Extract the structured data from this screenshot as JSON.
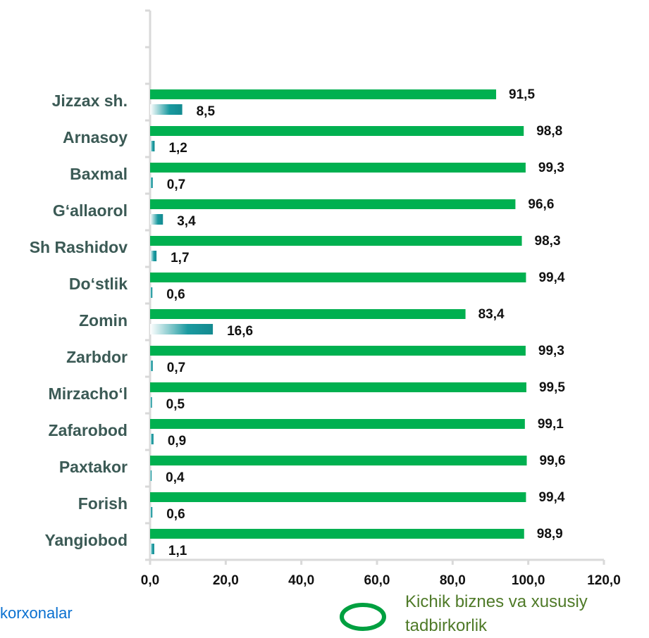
{
  "chart_data": {
    "type": "bar",
    "orientation": "horizontal",
    "categories": [
      null,
      null,
      "Jizzax sh.",
      "Arnasoy",
      "Baxmal",
      "G‘allaorol",
      "Sh Rashidov",
      "Do‘stlik",
      "Zomin",
      "Zarbdor",
      "Mirzacho‘l",
      "Zafarobod",
      "Paxtakor",
      "Forish",
      "Yangiobod"
    ],
    "series": [
      {
        "name": "Kichik biznes va xususiy tadbirkorlik",
        "color": "#00b050",
        "values": [
          null,
          null,
          91.5,
          98.8,
          99.3,
          96.6,
          98.3,
          99.4,
          83.4,
          99.3,
          99.5,
          99.1,
          99.6,
          99.4,
          98.9
        ],
        "value_labels": [
          null,
          null,
          "91,5",
          "98,8",
          "99,3",
          "96,6",
          "98,3",
          "99,4",
          "83,4",
          "99,3",
          "99,5",
          "99,1",
          "99,6",
          "99,4",
          "98,9"
        ]
      },
      {
        "name": "korxonalar",
        "color": "#1a9aa0",
        "values": [
          null,
          null,
          8.5,
          1.2,
          0.7,
          3.4,
          1.7,
          0.6,
          16.6,
          0.7,
          0.5,
          0.9,
          0.4,
          0.6,
          1.1
        ],
        "value_labels": [
          null,
          null,
          "8,5",
          "1,2",
          "0,7",
          "3,4",
          "1,7",
          "0,6",
          "16,6",
          "0,7",
          "0,5",
          "0,9",
          "0,4",
          "0,6",
          "1,1"
        ]
      }
    ],
    "xlim": [
      0,
      120
    ],
    "xticks": [
      {
        "value": 0,
        "label": "0,0"
      },
      {
        "value": 20,
        "label": "20,0"
      },
      {
        "value": 40,
        "label": "40,0"
      },
      {
        "value": 60,
        "label": "60,0"
      },
      {
        "value": 80,
        "label": "80,0"
      },
      {
        "value": 100,
        "label": "100,0"
      },
      {
        "value": 120,
        "label": "120,0"
      }
    ],
    "grid": false
  }
}
